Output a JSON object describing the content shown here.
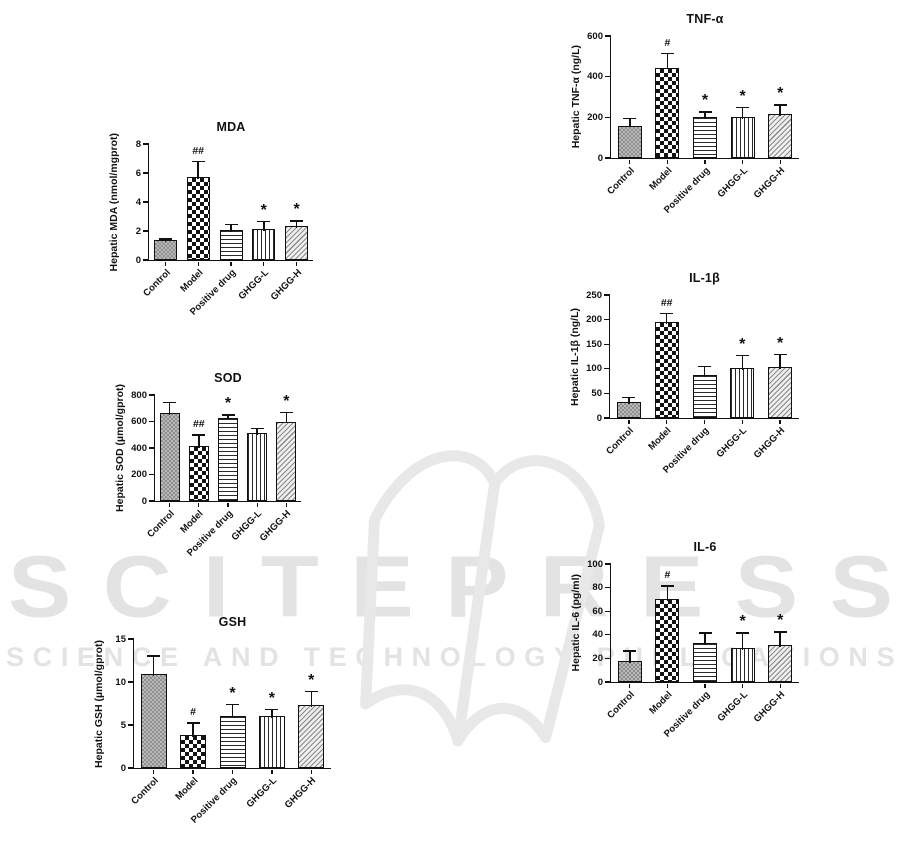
{
  "watermark": {
    "wordmark": "SCITEPRESS",
    "tagline": "SCIENCE AND TECHNOLOGY PUBLICATIONS",
    "color": "#e3e3e3",
    "logo": "open-book"
  },
  "patterns": [
    "gray-checker",
    "checkerboard",
    "horizontal-lines",
    "vertical-lines",
    "diagonal-hatch"
  ],
  "chart_data": [
    {
      "id": "mda",
      "type": "bar",
      "title": "MDA",
      "ylabel": "Hepatic MDA (nmol/mgprot)",
      "categories": [
        "Control",
        "Model",
        "Positive drug",
        "GHGG-L",
        "GHGG-H"
      ],
      "values": [
        1.35,
        5.75,
        2.05,
        2.15,
        2.35
      ],
      "errors": [
        0.15,
        1.1,
        0.45,
        0.55,
        0.4
      ],
      "annotations": [
        "",
        "##",
        "",
        "*",
        "*"
      ],
      "ylim": [
        0,
        8
      ],
      "yticks": [
        0,
        2,
        4,
        6,
        8
      ],
      "grid": false,
      "legend": "none"
    },
    {
      "id": "sod",
      "type": "bar",
      "title": "SOD",
      "ylabel": "Hepatic SOD (µmol/gprot)",
      "categories": [
        "Control",
        "Model",
        "Positive drug",
        "GHGG-L",
        "GHGG-H"
      ],
      "values": [
        665,
        415,
        630,
        515,
        600
      ],
      "errors": [
        85,
        90,
        25,
        40,
        75
      ],
      "annotations": [
        "",
        "##",
        "*",
        "",
        "*"
      ],
      "ylim": [
        0,
        800
      ],
      "yticks": [
        0,
        200,
        400,
        600,
        800
      ],
      "grid": false,
      "legend": "none"
    },
    {
      "id": "gsh",
      "type": "bar",
      "title": "GSH",
      "ylabel": "Hepatic GSH (µmol/gprot)",
      "categories": [
        "Control",
        "Model",
        "Positive drug",
        "GHGG-L",
        "GHGG-H"
      ],
      "values": [
        10.9,
        3.8,
        6.1,
        6.1,
        7.3
      ],
      "errors": [
        2.2,
        1.5,
        1.4,
        0.8,
        1.7
      ],
      "annotations": [
        "",
        "#",
        "*",
        "*",
        "*"
      ],
      "ylim": [
        0,
        15
      ],
      "yticks": [
        0,
        5,
        10,
        15
      ],
      "grid": false,
      "legend": "none"
    },
    {
      "id": "tnf",
      "type": "bar",
      "title": "TNF-α",
      "ylabel": "Hepatic TNF-α  (ng/L)",
      "categories": [
        "Control",
        "Model",
        "Positive drug",
        "GHGG-L",
        "GHGG-H"
      ],
      "values": [
        160,
        445,
        200,
        202,
        215
      ],
      "errors": [
        37,
        73,
        30,
        50,
        50
      ],
      "annotations": [
        "",
        "#",
        "*",
        "*",
        "*"
      ],
      "ylim": [
        0,
        600
      ],
      "yticks": [
        0,
        200,
        400,
        600
      ],
      "grid": false,
      "legend": "none"
    },
    {
      "id": "il1b",
      "type": "bar",
      "title": "IL-1β",
      "ylabel": "Hepatic IL-1β  (ng/L)",
      "categories": [
        "Control",
        "Model",
        "Positive drug",
        "GHGG-L",
        "GHGG-H"
      ],
      "values": [
        32,
        195,
        88,
        102,
        103
      ],
      "errors": [
        11,
        19,
        18,
        27,
        28
      ],
      "annotations": [
        "",
        "##",
        "",
        "*",
        "*"
      ],
      "ylim": [
        0,
        250
      ],
      "yticks": [
        0,
        50,
        100,
        150,
        200,
        250
      ],
      "grid": false,
      "legend": "none"
    },
    {
      "id": "il6",
      "type": "bar",
      "title": "IL-6",
      "ylabel": "Hepatic IL-6 (pg/ml)",
      "categories": [
        "Control",
        "Model",
        "Positive drug",
        "GHGG-L",
        "GHGG-H"
      ],
      "values": [
        18,
        70,
        33,
        29,
        31
      ],
      "errors": [
        9,
        12,
        9,
        13,
        12
      ],
      "annotations": [
        "",
        "#",
        "",
        "*",
        "*"
      ],
      "ylim": [
        0,
        100
      ],
      "yticks": [
        0,
        20,
        40,
        60,
        80,
        100
      ],
      "grid": false,
      "legend": "none"
    }
  ]
}
